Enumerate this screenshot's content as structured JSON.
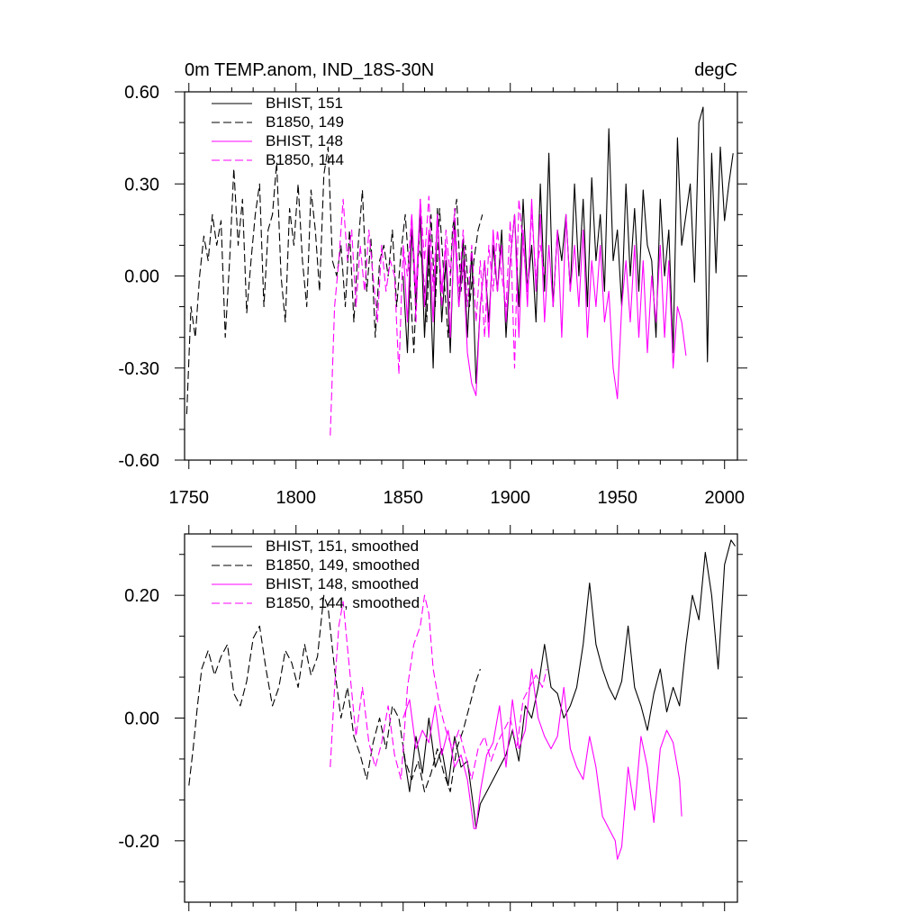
{
  "chart_data": [
    {
      "type": "line",
      "title_left": "0m TEMP.anom, IND_18S-30N",
      "title_right": "degC",
      "xlim": [
        1748,
        2006
      ],
      "ylim": [
        -0.6,
        0.6
      ],
      "xticks": [
        1750,
        1800,
        1850,
        1900,
        1950,
        2000
      ],
      "xtick_labels": [
        "1750",
        "1800",
        "1850",
        "1900",
        "1950",
        "2000"
      ],
      "yticks": [
        -0.6,
        -0.3,
        0.0,
        0.3,
        0.6
      ],
      "ytick_labels": [
        "-0.60",
        "-0.30",
        "0.00",
        "0.30",
        "0.60"
      ],
      "legend_position": "top-left",
      "series": [
        {
          "name": "BHIST, 151",
          "color": "#000000",
          "dash": "solid",
          "x": [
            1850,
            1852,
            1854,
            1856,
            1858,
            1860,
            1862,
            1864,
            1866,
            1868,
            1870,
            1872,
            1874,
            1876,
            1878,
            1880,
            1882,
            1884,
            1886,
            1888,
            1890,
            1892,
            1894,
            1896,
            1898,
            1900,
            1902,
            1904,
            1906,
            1908,
            1910,
            1912,
            1914,
            1916,
            1918,
            1920,
            1922,
            1924,
            1926,
            1928,
            1930,
            1932,
            1934,
            1936,
            1938,
            1940,
            1942,
            1944,
            1946,
            1948,
            1950,
            1952,
            1954,
            1956,
            1958,
            1960,
            1962,
            1964,
            1966,
            1968,
            1970,
            1972,
            1974,
            1976,
            1978,
            1980,
            1982,
            1984,
            1986,
            1988,
            1990,
            1992,
            1994,
            1996,
            1998,
            2000,
            2002,
            2004
          ],
          "y": [
            0.0,
            -0.25,
            0.15,
            -0.1,
            0.2,
            -0.2,
            0.1,
            -0.3,
            0.22,
            -0.15,
            0.05,
            -0.25,
            0.18,
            -0.1,
            0.12,
            -0.2,
            0.08,
            -0.35,
            -0.1,
            0.05,
            -0.15,
            0.1,
            -0.05,
            0.15,
            -0.2,
            0.05,
            0.2,
            -0.1,
            0.25,
            -0.05,
            0.1,
            -0.15,
            0.3,
            -0.05,
            0.4,
            -0.1,
            0.15,
            0.05,
            0.2,
            -0.05,
            0.3,
            0.0,
            0.25,
            -0.1,
            0.32,
            0.05,
            0.2,
            -0.05,
            0.48,
            0.05,
            0.15,
            -0.1,
            0.3,
            0.0,
            0.22,
            -0.05,
            0.28,
            0.1,
            0.05,
            -0.2,
            0.25,
            0.0,
            0.15,
            -0.25,
            0.45,
            0.1,
            0.2,
            0.3,
            -0.02,
            0.5,
            0.55,
            -0.28,
            0.4,
            0.01,
            0.42,
            0.18,
            0.3,
            0.4
          ]
        },
        {
          "name": "B1850, 149",
          "color": "#000000",
          "dash": "dashed",
          "x": [
            1749,
            1751,
            1753,
            1755,
            1757,
            1759,
            1761,
            1763,
            1765,
            1767,
            1769,
            1771,
            1773,
            1775,
            1777,
            1779,
            1781,
            1783,
            1785,
            1787,
            1789,
            1791,
            1793,
            1795,
            1797,
            1799,
            1801,
            1803,
            1805,
            1807,
            1809,
            1811,
            1813,
            1815,
            1817,
            1819,
            1821,
            1823,
            1825,
            1827,
            1829,
            1831,
            1833,
            1835,
            1837,
            1839,
            1841,
            1843,
            1845,
            1847,
            1849,
            1851,
            1853,
            1855,
            1857,
            1859,
            1861,
            1863,
            1865,
            1867,
            1869,
            1871,
            1873,
            1875,
            1877,
            1879,
            1881,
            1883,
            1885,
            1887
          ],
          "y": [
            -0.45,
            -0.1,
            -0.2,
            0.0,
            0.13,
            0.05,
            0.2,
            0.1,
            0.18,
            -0.2,
            0.05,
            0.35,
            0.1,
            0.25,
            -0.12,
            0.05,
            0.2,
            0.3,
            -0.1,
            0.15,
            0.2,
            0.37,
            0.0,
            -0.15,
            0.22,
            0.1,
            0.3,
            0.05,
            -0.1,
            0.28,
            0.15,
            -0.05,
            0.33,
            0.42,
            0.05,
            0.0,
            0.1,
            -0.1,
            0.15,
            -0.15,
            0.1,
            0.28,
            -0.05,
            0.12,
            -0.2,
            0.05,
            0.1,
            0.0,
            0.15,
            -0.1,
            0.08,
            0.2,
            0.0,
            -0.25,
            0.1,
            0.05,
            -0.15,
            0.2,
            -0.1,
            0.22,
            0.0,
            -0.2,
            0.15,
            0.25,
            -0.05,
            0.1,
            -0.1,
            0.05,
            0.15,
            0.2
          ]
        },
        {
          "name": "BHIST, 148",
          "color": "#ff00ff",
          "dash": "solid",
          "x": [
            1850,
            1852,
            1854,
            1856,
            1858,
            1860,
            1862,
            1864,
            1866,
            1868,
            1870,
            1872,
            1874,
            1876,
            1878,
            1880,
            1882,
            1884,
            1886,
            1888,
            1890,
            1892,
            1894,
            1896,
            1898,
            1900,
            1902,
            1904,
            1906,
            1908,
            1910,
            1912,
            1914,
            1916,
            1918,
            1920,
            1922,
            1924,
            1926,
            1928,
            1930,
            1932,
            1934,
            1936,
            1938,
            1940,
            1942,
            1944,
            1946,
            1948,
            1950,
            1952,
            1954,
            1956,
            1958,
            1960,
            1962,
            1964,
            1966,
            1968,
            1970,
            1972,
            1974,
            1976,
            1978,
            1980,
            1982
          ],
          "y": [
            0.1,
            -0.15,
            0.2,
            -0.05,
            0.25,
            -0.1,
            0.15,
            -0.15,
            0.2,
            -0.05,
            0.1,
            -0.2,
            0.15,
            -0.1,
            0.05,
            -0.25,
            -0.35,
            -0.39,
            -0.1,
            0.05,
            -0.2,
            0.15,
            -0.05,
            0.1,
            -0.15,
            0.05,
            0.2,
            -0.2,
            0.15,
            -0.1,
            0.25,
            -0.05,
            0.2,
            -0.15,
            0.1,
            -0.1,
            0.15,
            -0.2,
            0.2,
            -0.05,
            0.1,
            -0.1,
            0.15,
            -0.2,
            0.05,
            -0.1,
            0.1,
            -0.15,
            -0.05,
            -0.3,
            -0.4,
            -0.1,
            0.05,
            -0.15,
            0.1,
            -0.2,
            0.05,
            -0.25,
            0.0,
            -0.15,
            0.1,
            -0.2,
            0.05,
            -0.3,
            -0.1,
            -0.15,
            -0.26
          ]
        },
        {
          "name": "B1850, 144",
          "color": "#ff00ff",
          "dash": "dashed",
          "x": [
            1816,
            1818,
            1820,
            1822,
            1824,
            1826,
            1828,
            1830,
            1832,
            1834,
            1836,
            1838,
            1840,
            1842,
            1844,
            1846,
            1848,
            1850,
            1852,
            1854,
            1856,
            1858,
            1860,
            1862,
            1864,
            1866,
            1868,
            1870,
            1872,
            1874,
            1876,
            1878,
            1880,
            1882,
            1884,
            1886,
            1888,
            1890,
            1892,
            1894,
            1896,
            1898,
            1900,
            1902,
            1904,
            1906,
            1908,
            1910,
            1912,
            1914,
            1916
          ],
          "y": [
            -0.52,
            -0.1,
            0.05,
            0.25,
            0.05,
            0.15,
            -0.1,
            0.1,
            -0.05,
            0.15,
            0.0,
            -0.15,
            0.1,
            -0.05,
            0.05,
            0.0,
            -0.32,
            0.1,
            0.0,
            0.2,
            -0.15,
            0.25,
            0.05,
            0.26,
            -0.05,
            0.2,
            -0.1,
            0.15,
            0.0,
            0.22,
            -0.05,
            0.15,
            -0.1,
            0.1,
            -0.15,
            0.05,
            -0.2,
            0.1,
            -0.05,
            0.15,
            0.0,
            -0.1,
            0.18,
            -0.3,
            0.25,
            0.1,
            -0.05,
            0.2,
            0.0,
            0.1,
            0.0
          ]
        }
      ]
    },
    {
      "type": "line",
      "xlim": [
        1748,
        2006
      ],
      "ylim": [
        -0.3,
        0.3
      ],
      "yticks": [
        -0.2,
        0.0,
        0.2
      ],
      "ytick_labels": [
        "-0.20",
        "0.00",
        "0.20"
      ],
      "xticks": [
        1750,
        1800,
        1850,
        1900,
        1950,
        2000
      ],
      "legend_position": "top-left",
      "series": [
        {
          "name": "BHIST, 151, smoothed",
          "color": "#000000",
          "dash": "solid",
          "x": [
            1850,
            1853,
            1856,
            1859,
            1862,
            1865,
            1868,
            1871,
            1874,
            1877,
            1880,
            1883,
            1884,
            1886,
            1889,
            1892,
            1895,
            1898,
            1901,
            1904,
            1907,
            1910,
            1913,
            1916,
            1919,
            1922,
            1925,
            1928,
            1931,
            1934,
            1937,
            1940,
            1943,
            1946,
            1949,
            1952,
            1955,
            1958,
            1961,
            1964,
            1967,
            1970,
            1973,
            1976,
            1979,
            1982,
            1985,
            1988,
            1991,
            1994,
            1997,
            2000,
            2003,
            2005
          ],
          "y": [
            -0.05,
            -0.12,
            -0.03,
            -0.09,
            0.0,
            -0.08,
            -0.05,
            -0.11,
            -0.03,
            -0.08,
            -0.07,
            -0.15,
            -0.18,
            -0.14,
            -0.12,
            -0.1,
            -0.08,
            -0.06,
            -0.02,
            -0.07,
            0.02,
            0.0,
            0.05,
            0.12,
            0.05,
            0.04,
            0.0,
            0.02,
            0.05,
            0.12,
            0.22,
            0.12,
            0.08,
            0.05,
            0.03,
            0.06,
            0.15,
            0.05,
            0.02,
            -0.02,
            0.04,
            0.08,
            0.01,
            0.05,
            0.02,
            0.12,
            0.2,
            0.16,
            0.27,
            0.2,
            0.08,
            0.25,
            0.29,
            0.28
          ]
        },
        {
          "name": "B1850, 149, smoothed",
          "color": "#000000",
          "dash": "dashed",
          "x": [
            1750,
            1752,
            1754,
            1756,
            1759,
            1762,
            1765,
            1768,
            1771,
            1774,
            1777,
            1780,
            1783,
            1786,
            1789,
            1792,
            1795,
            1798,
            1801,
            1804,
            1807,
            1810,
            1813,
            1815,
            1818,
            1821,
            1824,
            1827,
            1830,
            1833,
            1836,
            1839,
            1842,
            1845,
            1848,
            1851,
            1854,
            1857,
            1860,
            1863,
            1866,
            1869,
            1872,
            1875,
            1878,
            1881,
            1884,
            1886
          ],
          "y": [
            -0.11,
            -0.05,
            0.02,
            0.08,
            0.11,
            0.07,
            0.1,
            0.12,
            0.04,
            0.02,
            0.06,
            0.13,
            0.15,
            0.08,
            0.02,
            0.05,
            0.11,
            0.09,
            0.05,
            0.12,
            0.07,
            0.1,
            0.2,
            0.18,
            0.08,
            0.0,
            0.05,
            -0.03,
            -0.06,
            -0.1,
            -0.04,
            0.0,
            -0.05,
            0.02,
            0.0,
            -0.07,
            -0.1,
            -0.07,
            -0.12,
            -0.09,
            -0.05,
            -0.09,
            -0.12,
            -0.05,
            -0.02,
            0.02,
            0.06,
            0.08
          ]
        },
        {
          "name": "BHIST, 148, smoothed",
          "color": "#ff00ff",
          "dash": "solid",
          "x": [
            1850,
            1853,
            1856,
            1859,
            1862,
            1865,
            1868,
            1871,
            1874,
            1877,
            1880,
            1883,
            1884,
            1886,
            1889,
            1892,
            1895,
            1898,
            1901,
            1904,
            1907,
            1910,
            1913,
            1916,
            1919,
            1922,
            1925,
            1928,
            1931,
            1934,
            1937,
            1940,
            1943,
            1946,
            1949,
            1950,
            1952,
            1955,
            1958,
            1961,
            1964,
            1967,
            1970,
            1973,
            1976,
            1979,
            1980
          ],
          "y": [
            0.0,
            0.03,
            -0.05,
            -0.02,
            -0.04,
            0.02,
            -0.06,
            -0.02,
            -0.08,
            -0.06,
            -0.1,
            -0.18,
            -0.18,
            -0.12,
            -0.06,
            -0.04,
            0.02,
            -0.08,
            0.03,
            -0.05,
            -0.02,
            0.08,
            0.0,
            -0.03,
            -0.05,
            -0.03,
            0.05,
            -0.05,
            -0.08,
            -0.1,
            -0.03,
            -0.08,
            -0.16,
            -0.18,
            -0.2,
            -0.23,
            -0.21,
            -0.08,
            -0.15,
            -0.03,
            -0.08,
            -0.17,
            -0.05,
            -0.02,
            -0.04,
            -0.1,
            -0.16
          ]
        },
        {
          "name": "B1850, 144, smoothed",
          "color": "#ff00ff",
          "dash": "dashed",
          "x": [
            1816,
            1818,
            1820,
            1822,
            1825,
            1828,
            1831,
            1834,
            1837,
            1840,
            1843,
            1846,
            1849,
            1852,
            1855,
            1858,
            1860,
            1862,
            1864,
            1867,
            1870,
            1873,
            1876,
            1879,
            1882,
            1885,
            1888,
            1891,
            1894,
            1897,
            1900,
            1903,
            1906,
            1909,
            1912,
            1915,
            1917
          ],
          "y": [
            -0.08,
            0.05,
            0.15,
            0.19,
            0.08,
            -0.03,
            0.05,
            -0.04,
            -0.08,
            -0.04,
            0.02,
            -0.06,
            -0.1,
            0.05,
            0.12,
            0.15,
            0.2,
            0.17,
            0.08,
            0.02,
            -0.02,
            -0.05,
            -0.02,
            -0.06,
            -0.1,
            -0.05,
            -0.03,
            -0.07,
            -0.04,
            -0.02,
            0.0,
            -0.05,
            0.03,
            0.05,
            0.07,
            0.05,
            0.08
          ]
        }
      ]
    }
  ]
}
